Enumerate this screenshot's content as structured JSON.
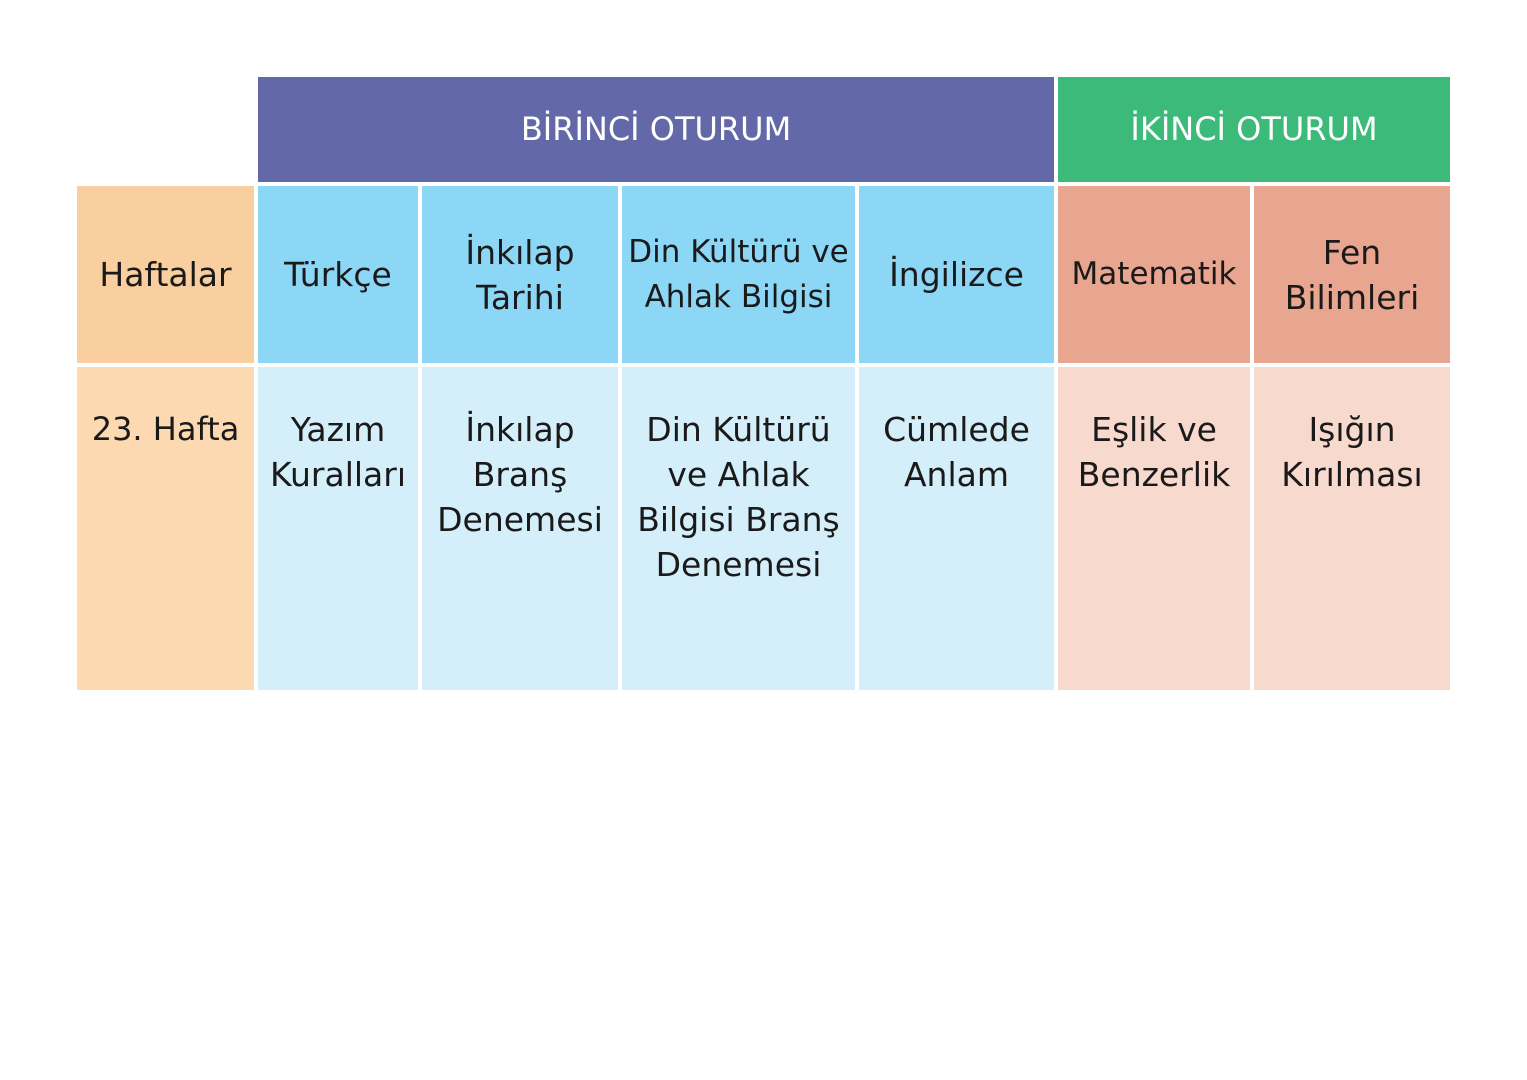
{
  "colors": {
    "session1": "#6268a8",
    "session2": "#3cba7a",
    "weeks_header": "#f9cfa0",
    "weeks_body": "#fcd9b1",
    "session1_header": "#8dd7f6",
    "session1_body": "#d4eff9",
    "session2_header": "#e8a58f",
    "session2_body": "#f7d9ce"
  },
  "sessions": [
    "BİRİNCİ OTURUM",
    "İKİNCİ OTURUM"
  ],
  "headers": [
    "Haftalar",
    "Türkçe",
    "İnkılap Tarihi",
    "Din Kültürü ve Ahlak Bilgisi",
    "İngilizce",
    "Matematik",
    "Fen Bilimleri"
  ],
  "row": [
    "23. Hafta",
    "Yazım Kuralları",
    "İnkılap Branş Denemesi",
    "Din Kültürü ve Ahlak Bilgisi Branş Denemesi",
    "Cümlede Anlam",
    "Eşlik ve Benzerlik",
    "Işığın Kırılması"
  ]
}
